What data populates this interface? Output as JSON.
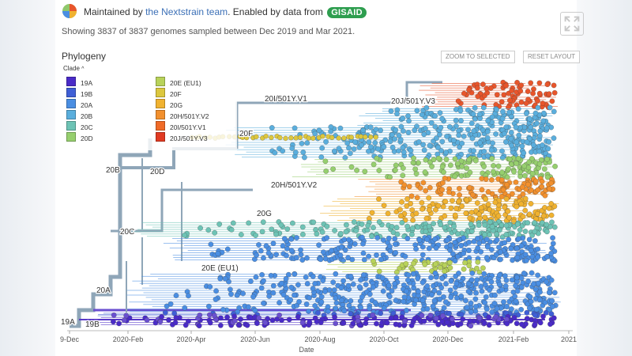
{
  "header": {
    "maintained_prefix": "Maintained by",
    "maintained_link": "the Nextstrain team",
    "enabled_text": ". Enabled by data from",
    "gisaid_badge": "GISAID",
    "showing": "Showing 3837 of 3837 genomes sampled between Dec 2019 and Mar 2021."
  },
  "panel": {
    "title": "Phylogeny",
    "zoom_button": "ZOOM TO SELECTED",
    "reset_button": "RESET LAYOUT",
    "legend_title": "Clade",
    "legend_caret": "^"
  },
  "legend": [
    {
      "label": "19A",
      "color": "#4a2bc8"
    },
    {
      "label": "19B",
      "color": "#3f5fd6"
    },
    {
      "label": "20A",
      "color": "#4a8ee2"
    },
    {
      "label": "20B",
      "color": "#5aaedd"
    },
    {
      "label": "20C",
      "color": "#6dc3b5"
    },
    {
      "label": "20D",
      "color": "#96cf6e"
    },
    {
      "label": "20E (EU1)",
      "color": "#b8d25a"
    },
    {
      "label": "20F",
      "color": "#dcc73e"
    },
    {
      "label": "20G",
      "color": "#f0b230"
    },
    {
      "label": "20H/501Y.V2",
      "color": "#f2902d"
    },
    {
      "label": "20I/501Y.V1",
      "color": "#f06b27"
    },
    {
      "label": "20J/501Y.V3",
      "color": "#e13a22"
    }
  ],
  "chart_data": {
    "type": "scatter",
    "xlabel": "Date",
    "x_ticks": [
      "9-Dec",
      "2020-Feb",
      "2020-Apr",
      "2020-Jun",
      "2020-Aug",
      "2020-Oct",
      "2020-Dec",
      "2021-Feb",
      "2021"
    ],
    "clade_labels": [
      "19A",
      "19B",
      "20A",
      "20B",
      "20C",
      "20D",
      "20E (EU1)",
      "20F",
      "20G",
      "20H/501Y.V2",
      "20I/501Y.V1",
      "20J/501Y.V3"
    ],
    "clades": [
      {
        "name": "20J/501Y.V3",
        "color": "#e8552b",
        "y": [
          104,
          136
        ],
        "x": [
          "2020-Dec",
          "2021-Feb"
        ]
      },
      {
        "name": "20I/501Y.V1",
        "color": "#5aaedd",
        "y": [
          136,
          160
        ],
        "x": [
          "2020-Oct",
          "2021-Feb"
        ]
      },
      {
        "name": "20F",
        "color": "#5aaedd",
        "y": [
          160,
          200
        ],
        "x": [
          "2020-Jun",
          "2021-Feb"
        ]
      },
      {
        "name": "20D",
        "color": "#96cf6e",
        "y": [
          200,
          225
        ],
        "x": [
          "2020-Aug",
          "2021-Feb"
        ]
      },
      {
        "name": "20H/501Y.V2",
        "color": "#f2902d",
        "y": [
          225,
          250
        ],
        "x": [
          "2020-Oct",
          "2021-Feb"
        ]
      },
      {
        "name": "20G",
        "color": "#f0b230",
        "y": [
          250,
          280
        ],
        "x": [
          "2020-Sep",
          "2021-Feb"
        ]
      },
      {
        "name": "20C",
        "color": "#6dc3b5",
        "y": [
          280,
          300
        ],
        "x": [
          "2020-Mar",
          "2021-Feb"
        ]
      },
      {
        "name": "20A",
        "color": "#4a8ee2",
        "y": [
          300,
          330
        ],
        "x": [
          "2020-Apr",
          "2021-Feb"
        ]
      },
      {
        "name": "20E (EU1)",
        "color": "#b8d25a",
        "y": [
          330,
          345
        ],
        "x": [
          "2020-Sep",
          "2021-Jan"
        ]
      },
      {
        "name": "20A",
        "color": "#4a8ee2",
        "y": [
          345,
          395
        ],
        "x": [
          "2020-Mar",
          "2021-Feb"
        ]
      },
      {
        "name": "19B",
        "color": "#3f5fd6",
        "y": [
          395,
          400
        ],
        "x": [
          "2020-Feb",
          "2021-Feb"
        ]
      },
      {
        "name": "19A",
        "color": "#4a2bc8",
        "y": [
          400,
          412
        ],
        "x": [
          "2020-Jan",
          "2021-Feb"
        ]
      }
    ]
  }
}
